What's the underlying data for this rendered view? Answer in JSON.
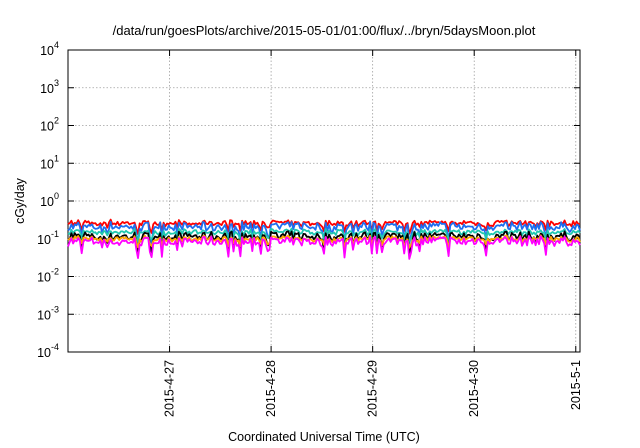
{
  "chart_data": {
    "type": "line",
    "title": "/data/run/goesPlots/archive/2015-05-01/01:00/flux/../bryn/5daysMoon.plot",
    "xlabel": "Coordinated Universal Time (UTC)",
    "ylabel": "cGy/day",
    "yscale": "log",
    "ylim": [
      0.0001,
      10000
    ],
    "ytick_labels": [
      {
        "base": "10",
        "exp": "-4",
        "value": 0.0001
      },
      {
        "base": "10",
        "exp": "-3",
        "value": 0.001
      },
      {
        "base": "10",
        "exp": "-2",
        "value": 0.01
      },
      {
        "base": "10",
        "exp": "-1",
        "value": 0.1
      },
      {
        "base": "10",
        "exp": "0",
        "value": 1
      },
      {
        "base": "10",
        "exp": "1",
        "value": 10
      },
      {
        "base": "10",
        "exp": "2",
        "value": 100
      },
      {
        "base": "10",
        "exp": "3",
        "value": 1000
      },
      {
        "base": "10",
        "exp": "4",
        "value": 10000
      }
    ],
    "xlim": [
      "2015-04-26T00:00",
      "2015-05-01T01:00"
    ],
    "xtick_labels": [
      "2015-4-27",
      "2015-4-28",
      "2015-4-29",
      "2015-4-30",
      "2015-5-1"
    ],
    "xtick_dates": [
      "2015-04-27",
      "2015-04-28",
      "2015-04-29",
      "2015-04-30",
      "2015-05-01"
    ],
    "grid": true,
    "series": [
      {
        "color": "#ff0000",
        "level": 0.26
      },
      {
        "color": "#1e6ef0",
        "level": 0.21
      },
      {
        "color": "#20c8b0",
        "level": 0.15
      },
      {
        "color": "#000000",
        "level": 0.115
      },
      {
        "color": "#ffa500",
        "level": 0.1
      },
      {
        "color": "#ff00ff",
        "level": 0.085
      }
    ]
  }
}
